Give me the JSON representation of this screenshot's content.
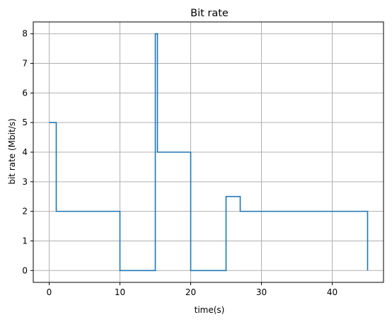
{
  "chart_data": {
    "type": "line",
    "step": "post",
    "title": "Bit rate",
    "xlabel": "time(s)",
    "ylabel": "bit rate (Mbit/s)",
    "xlim": [
      -2.25,
      47.25
    ],
    "ylim": [
      -0.4,
      8.4
    ],
    "xticks": [
      0,
      10,
      20,
      30,
      40
    ],
    "yticks": [
      0,
      1,
      2,
      3,
      4,
      5,
      6,
      7,
      8
    ],
    "grid": true,
    "legend": "none",
    "colors": {
      "series": "#1f77b4",
      "grid": "#b0b0b0"
    },
    "series": [
      {
        "x": [
          0,
          1,
          10,
          15,
          15.3,
          20,
          25,
          27,
          45,
          45
        ],
        "y": [
          5,
          2,
          0,
          8,
          4,
          0,
          2.5,
          2,
          2,
          0
        ]
      }
    ]
  }
}
